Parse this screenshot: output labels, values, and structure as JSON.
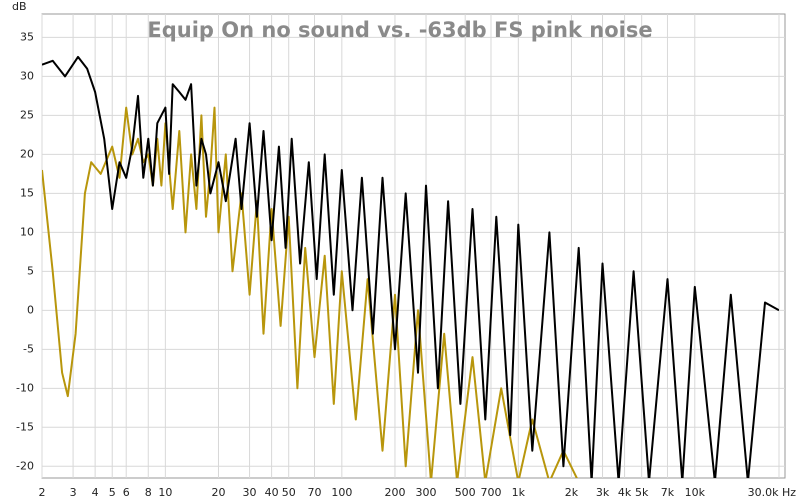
{
  "chart_data": {
    "type": "line",
    "title": "Equip On no sound vs. -63db FS pink noise",
    "y_label": "dB",
    "log_x": true,
    "grid": true,
    "xlim": [
      2,
      30000
    ],
    "ylim": [
      -21.5,
      38
    ],
    "xticks": [
      2,
      3,
      4,
      5,
      6,
      8,
      10,
      20,
      30,
      40,
      50,
      70,
      100,
      200,
      300,
      500,
      700,
      {
        "value": 1000,
        "label": "1k"
      },
      {
        "value": 2000,
        "label": "2k"
      },
      {
        "value": 3000,
        "label": "3k"
      },
      {
        "value": 4000,
        "label": "4k"
      },
      {
        "value": 5000,
        "label": "5k"
      },
      {
        "value": 7000,
        "label": "7k"
      },
      {
        "value": 10000,
        "label": "10k"
      },
      {
        "value": 30000,
        "label": "30.0k Hz"
      }
    ],
    "yticks": [
      35,
      30,
      25,
      20,
      15,
      10,
      5,
      0,
      -5,
      -10,
      -15,
      -20
    ],
    "series": [
      {
        "color": "#b8960c",
        "x": [
          2,
          2.3,
          2.6,
          2.8,
          3.1,
          3.5,
          3.8,
          4.3,
          5,
          5.5,
          6,
          6.5,
          7,
          7.5,
          8,
          8.5,
          9,
          9.5,
          10,
          11,
          12,
          13,
          14,
          15,
          16,
          17,
          18,
          19,
          20,
          22,
          24,
          27,
          30,
          33,
          36,
          40,
          45,
          50,
          56,
          62,
          70,
          80,
          90,
          100,
          120,
          140,
          170,
          200,
          230,
          270,
          320,
          380,
          450,
          550,
          650,
          800,
          1000,
          1200,
          1500,
          1800,
          2200
        ],
        "values": [
          18,
          5,
          -8,
          -11,
          -3,
          15,
          19,
          17.5,
          21,
          17,
          26,
          20,
          22,
          19,
          20,
          16,
          22,
          16,
          24,
          13,
          23,
          10,
          20,
          13,
          25,
          12,
          18,
          26,
          10,
          20,
          5,
          15,
          2,
          14,
          -3,
          13,
          -2,
          12,
          -10,
          8,
          -6,
          7,
          -12,
          5,
          -14,
          4,
          -18,
          2,
          -20,
          0,
          -22,
          -3,
          -22,
          -6,
          -22,
          -10,
          -22,
          -14,
          -22,
          -18,
          -22
        ]
      },
      {
        "color": "#000000",
        "x": [
          2,
          2.3,
          2.7,
          3.2,
          3.6,
          4,
          4.5,
          5,
          5.5,
          6,
          6.5,
          7,
          7.5,
          8,
          8.5,
          9,
          10,
          10.5,
          11,
          12,
          13,
          14,
          15,
          16,
          17,
          18,
          20,
          22,
          25,
          27,
          30,
          33,
          36,
          40,
          44,
          48,
          52,
          58,
          65,
          72,
          80,
          90,
          100,
          115,
          130,
          150,
          170,
          200,
          230,
          270,
          300,
          350,
          400,
          470,
          550,
          650,
          750,
          900,
          1000,
          1200,
          1500,
          1800,
          2200,
          2600,
          3000,
          3700,
          4500,
          5500,
          7000,
          8500,
          10000,
          13000,
          16000,
          20000,
          25000,
          30000
        ],
        "values": [
          31.5,
          32,
          30,
          32.5,
          31,
          28,
          22,
          13,
          19,
          17,
          21,
          27.5,
          17,
          22,
          16,
          24,
          26,
          17.5,
          29,
          28,
          27,
          29,
          16,
          22,
          20,
          15,
          19,
          14,
          22,
          13,
          24,
          12,
          23,
          9,
          21,
          8,
          22,
          6,
          19,
          4,
          20,
          2,
          18,
          0,
          17,
          -3,
          17,
          -5,
          15,
          -8,
          16,
          -10,
          14,
          -12,
          13,
          -14,
          12,
          -16,
          11,
          -18,
          10,
          -20,
          8,
          -22,
          6,
          -22,
          5,
          -22,
          4,
          -22,
          3,
          -22,
          2,
          -22,
          1,
          0
        ]
      }
    ]
  }
}
